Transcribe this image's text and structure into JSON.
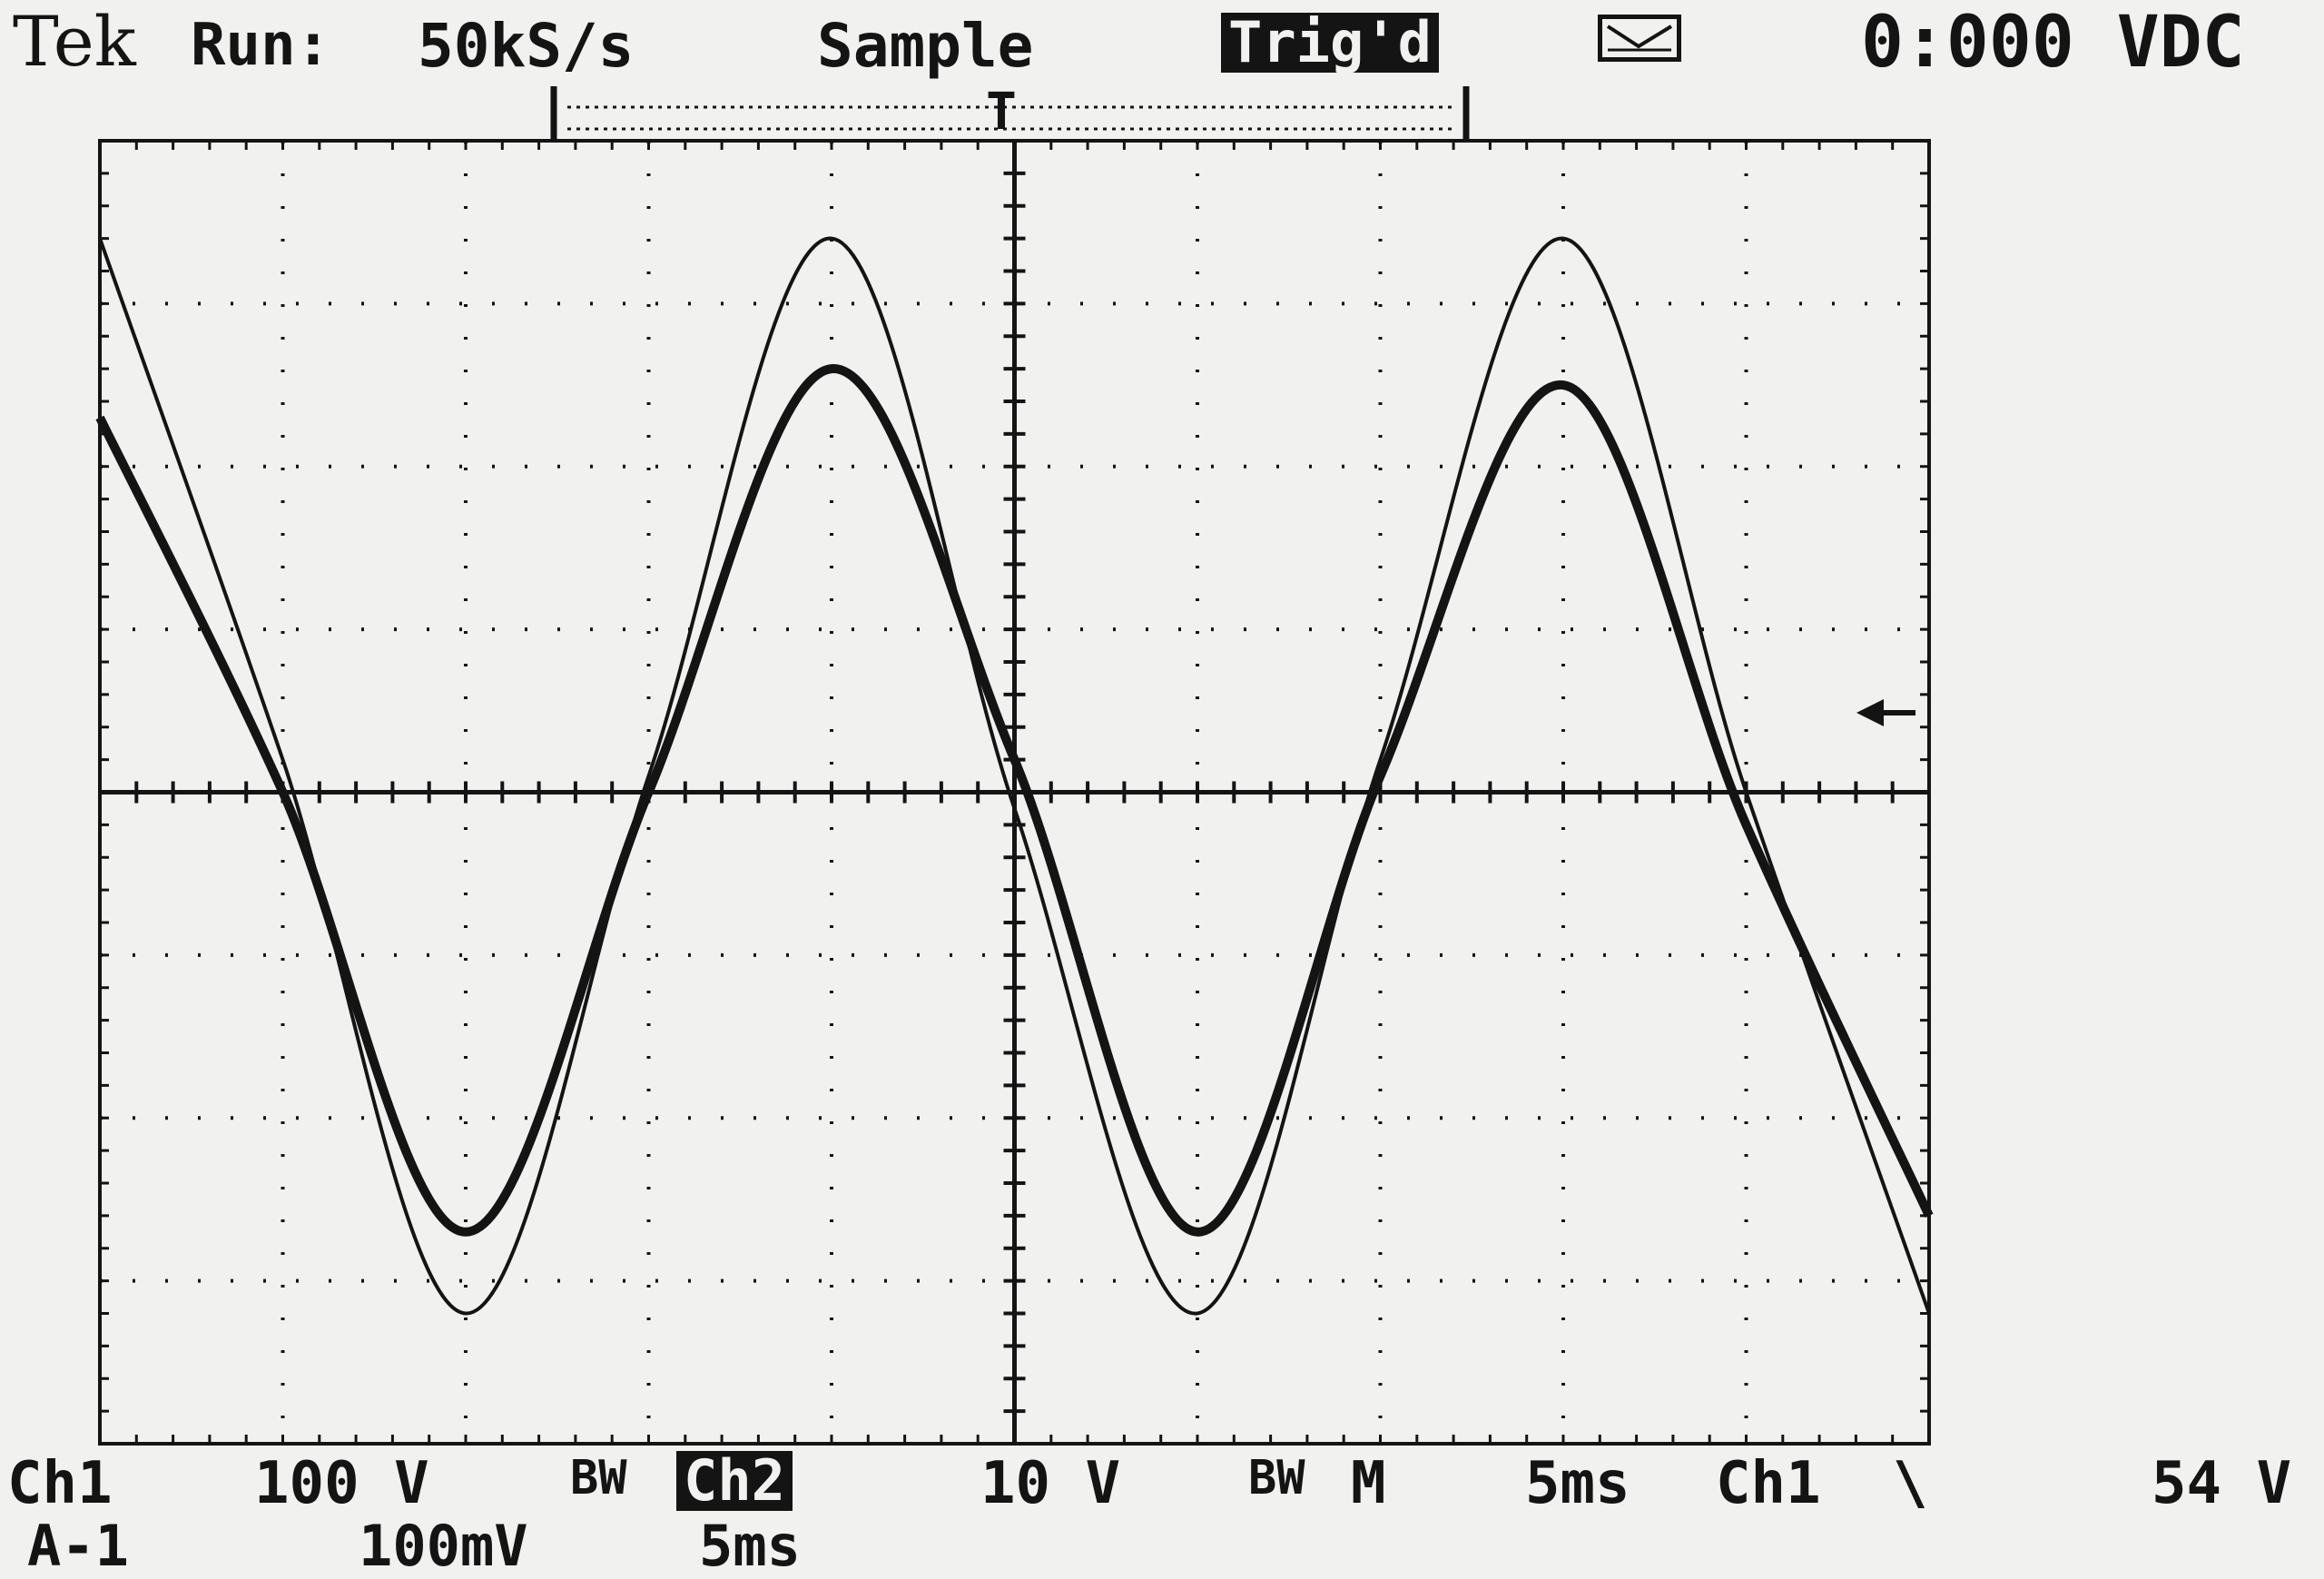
{
  "header": {
    "brand": "Tek",
    "run_label": "Run:",
    "sample_rate": "50kS/s",
    "acq_mode": "Sample",
    "trigger_status": "Trig'd",
    "readout": "0:000 VDC"
  },
  "footer": {
    "row1": {
      "ch1_label": "Ch1",
      "ch1_scale": "100 V",
      "ch1_bw": "BW",
      "ch2_label": "Ch2",
      "ch2_scale": "10 V",
      "ch2_bw": "BW",
      "m_label": "M",
      "timebase": "5ms",
      "trigger_source": "Ch1",
      "trigger_slope": "\\",
      "trigger_level": "54 V"
    },
    "row2": {
      "math_label": "A-1",
      "math_scale": "100mV",
      "math_timebase": "5ms"
    }
  },
  "colors": {
    "background": "#f1f1f0",
    "trace": "#141414",
    "graticule": "#141414"
  },
  "icons": {
    "acquisition_icon": "waveform-box-icon",
    "trigger_level_marker": "left-arrow-icon"
  },
  "chart_data": {
    "type": "line",
    "x_unit": "ms",
    "x": [
      0,
      5,
      10,
      15,
      20,
      25,
      30,
      35,
      40,
      45,
      50
    ],
    "series": [
      {
        "name": "Ch1",
        "values_div": [
          3.4,
          0.2,
          -3.2,
          0.1,
          3.4,
          -0.1,
          -3.2,
          0.2,
          3.4,
          0.0,
          -3.2
        ]
      },
      {
        "name": "Ch2",
        "values_div": [
          2.3,
          0.0,
          -2.7,
          0.0,
          2.6,
          0.2,
          -2.7,
          0.1,
          2.5,
          -0.2,
          -2.6
        ]
      }
    ],
    "divisions_x": 10,
    "divisions_y": 8
  }
}
